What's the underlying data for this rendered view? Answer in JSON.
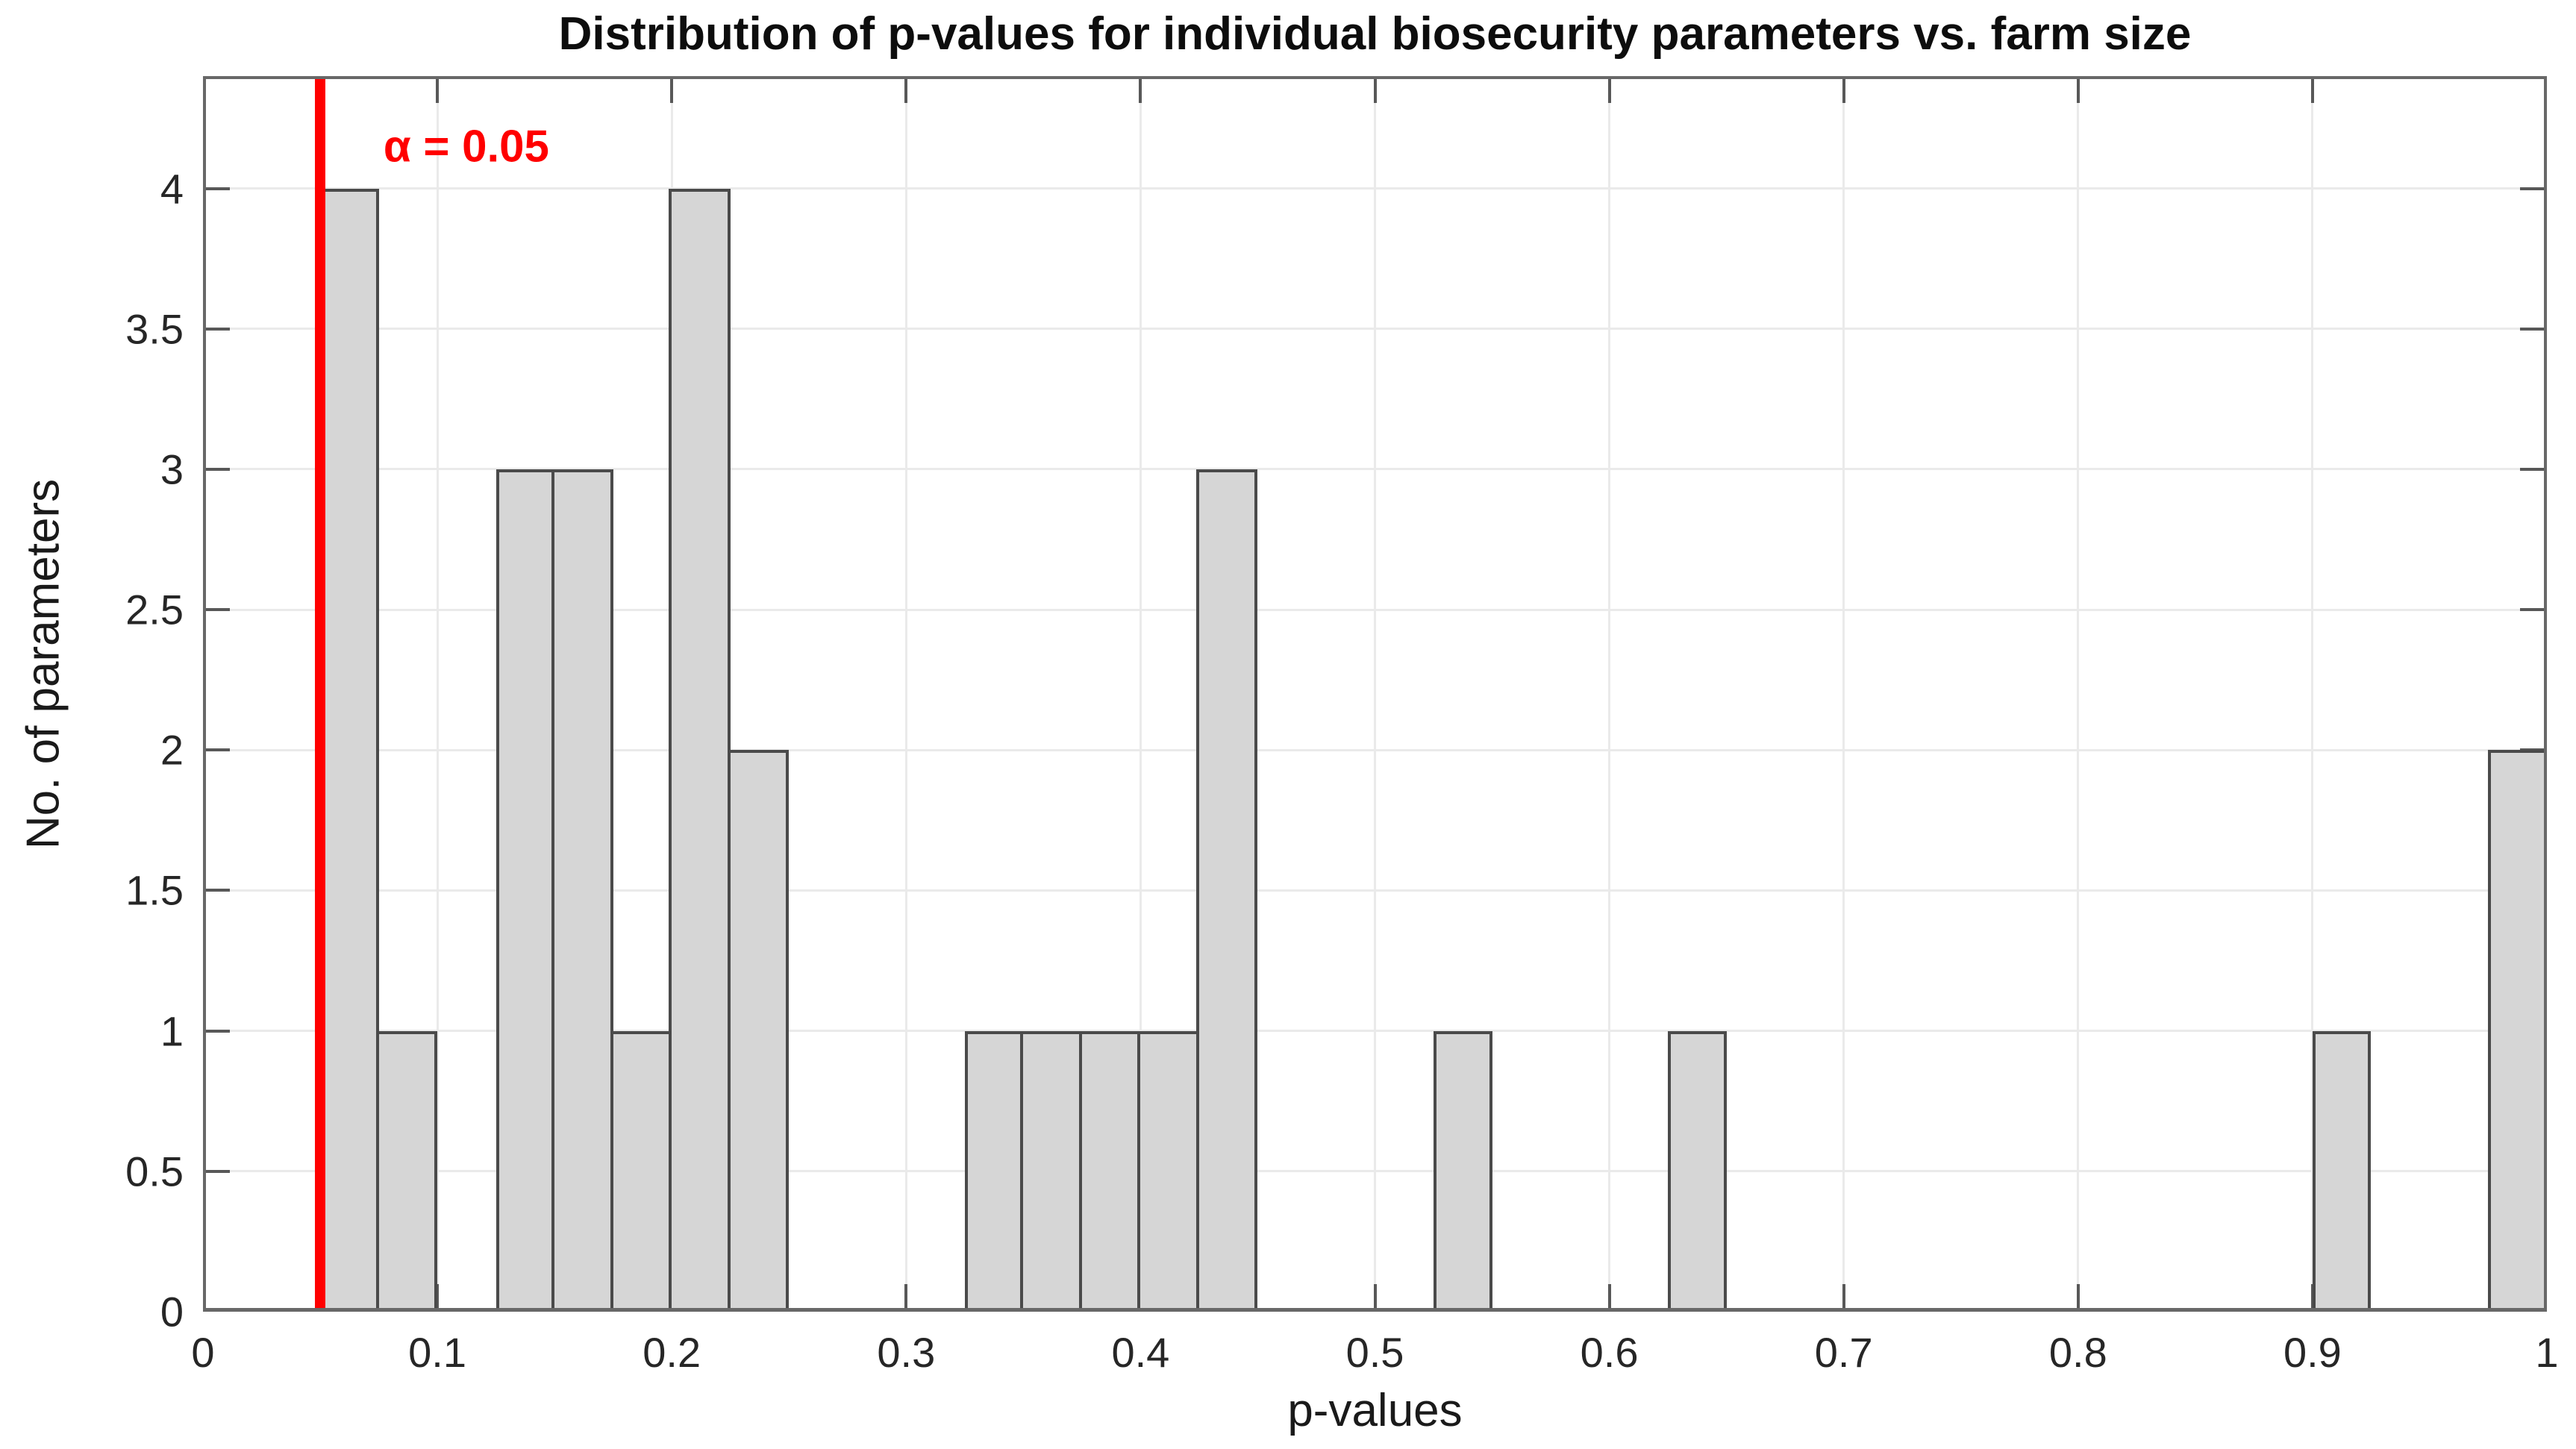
{
  "chart_data": {
    "type": "bar",
    "title": "Distribution of p-values for individual biosecurity parameters vs. farm size",
    "xlabel": "p-values",
    "ylabel": "No. of parameters",
    "xlim": [
      0,
      1
    ],
    "ylim": [
      0,
      4.4
    ],
    "x_ticks": [
      0,
      0.1,
      0.2,
      0.3,
      0.4,
      0.5,
      0.6,
      0.7,
      0.8,
      0.9,
      1
    ],
    "x_tick_labels": [
      "0",
      "0.1",
      "0.2",
      "0.3",
      "0.4",
      "0.5",
      "0.6",
      "0.7",
      "0.8",
      "0.9",
      "1"
    ],
    "y_ticks": [
      0,
      0.5,
      1,
      1.5,
      2,
      2.5,
      3,
      3.5,
      4
    ],
    "y_tick_labels": [
      "0",
      "0.5",
      "1",
      "1.5",
      "2",
      "2.5",
      "3",
      "3.5",
      "4"
    ],
    "grid": true,
    "legend": null,
    "bin_width": 0.025,
    "bins": [
      {
        "start": 0.05,
        "count": 4
      },
      {
        "start": 0.075,
        "count": 1
      },
      {
        "start": 0.125,
        "count": 3
      },
      {
        "start": 0.15,
        "count": 3
      },
      {
        "start": 0.175,
        "count": 1
      },
      {
        "start": 0.2,
        "count": 4
      },
      {
        "start": 0.225,
        "count": 2
      },
      {
        "start": 0.325,
        "count": 1
      },
      {
        "start": 0.35,
        "count": 1
      },
      {
        "start": 0.375,
        "count": 1
      },
      {
        "start": 0.4,
        "count": 1
      },
      {
        "start": 0.425,
        "count": 3
      },
      {
        "start": 0.525,
        "count": 1
      },
      {
        "start": 0.625,
        "count": 1
      },
      {
        "start": 0.9,
        "count": 1
      },
      {
        "start": 0.975,
        "count": 2
      }
    ],
    "annotation": {
      "label": "α = 0.05",
      "line_x": 0.05,
      "text_x": 0.077,
      "text_y": 4.15
    },
    "colors": {
      "bar_fill": "#d6d6d6",
      "bar_edge": "#4a4a4a",
      "grid": "#eaeaea",
      "axis": "#686868",
      "tick": "#585858",
      "tick_label": "#262626",
      "threshold": "#ff0000"
    }
  }
}
